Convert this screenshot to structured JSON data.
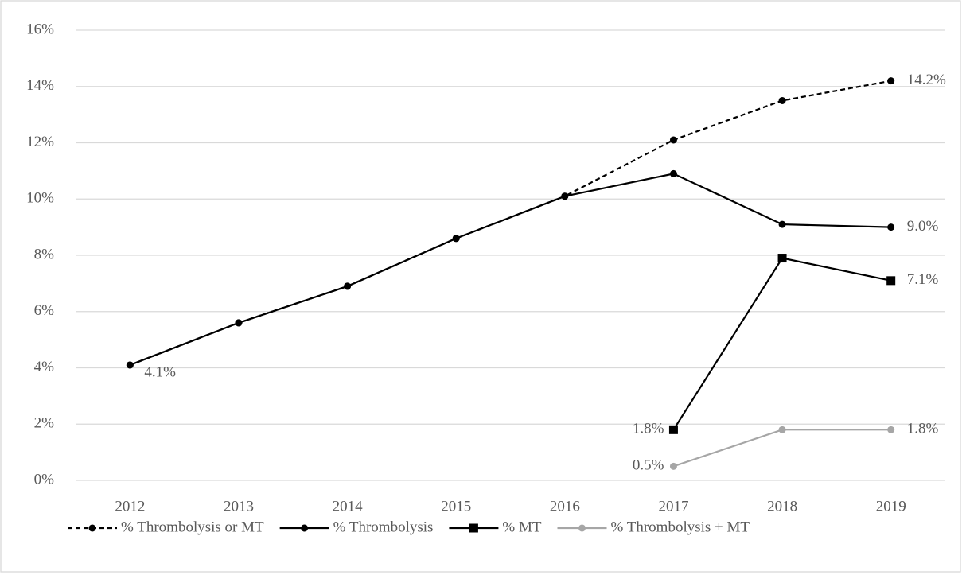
{
  "chart_data": {
    "type": "line",
    "categories": [
      "2012",
      "2013",
      "2014",
      "2015",
      "2016",
      "2017",
      "2018",
      "2019"
    ],
    "ylim": [
      0,
      16
    ],
    "yticks": [
      {
        "value": 0,
        "label": "0%"
      },
      {
        "value": 2,
        "label": "2%"
      },
      {
        "value": 4,
        "label": "4%"
      },
      {
        "value": 6,
        "label": "6%"
      },
      {
        "value": 8,
        "label": "8%"
      },
      {
        "value": 10,
        "label": "10%"
      },
      {
        "value": 12,
        "label": "12%"
      },
      {
        "value": 14,
        "label": "14%"
      },
      {
        "value": 16,
        "label": "16%"
      }
    ],
    "grid": true,
    "legend": "bottom",
    "series": [
      {
        "name": "% Thrombolysis or MT",
        "color": "#000000",
        "dashed": true,
        "marker": "circle",
        "values": [
          4.1,
          5.6,
          6.9,
          8.6,
          10.1,
          12.1,
          13.5,
          14.2
        ],
        "value_labels": [
          null,
          null,
          null,
          null,
          null,
          null,
          null,
          "14.2%"
        ]
      },
      {
        "name": "% Thrombolysis",
        "color": "#000000",
        "dashed": false,
        "marker": "circle",
        "values": [
          4.1,
          5.6,
          6.9,
          8.6,
          10.1,
          10.9,
          9.1,
          9.0
        ],
        "value_labels": [
          "4.1%",
          null,
          null,
          null,
          null,
          null,
          null,
          "9.0%"
        ]
      },
      {
        "name": "% MT",
        "color": "#000000",
        "dashed": false,
        "marker": "square",
        "values": [
          null,
          null,
          null,
          null,
          null,
          1.8,
          7.9,
          7.1
        ],
        "value_labels": [
          null,
          null,
          null,
          null,
          null,
          "1.8%",
          null,
          "7.1%"
        ]
      },
      {
        "name": "% Thrombolysis + MT",
        "color": "#a6a6a6",
        "dashed": false,
        "marker": "circle",
        "values": [
          null,
          null,
          null,
          null,
          null,
          0.5,
          1.8,
          1.8
        ],
        "value_labels": [
          null,
          null,
          null,
          null,
          null,
          "0.5%",
          null,
          "1.8%"
        ]
      }
    ]
  }
}
